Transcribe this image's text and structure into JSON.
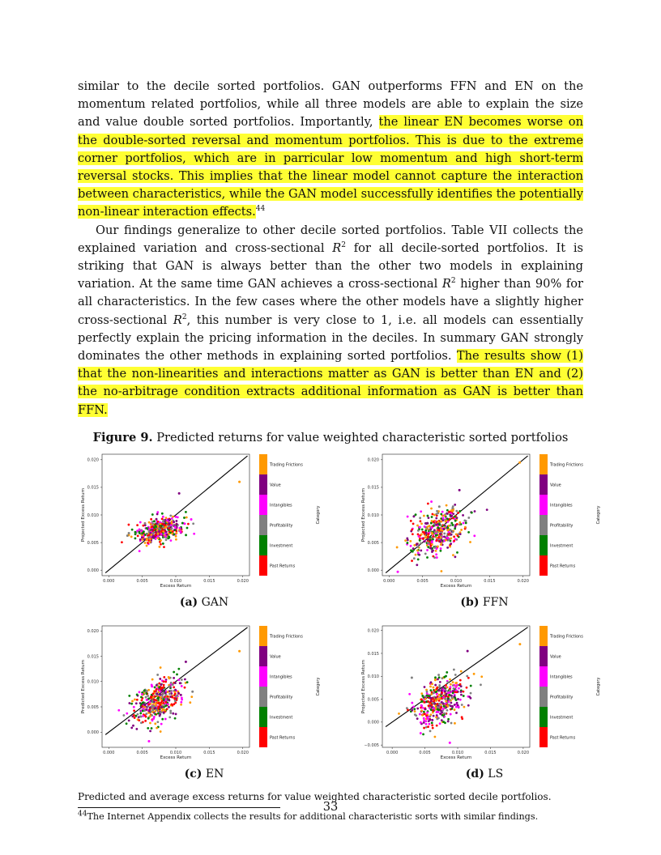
{
  "body": {
    "p1_a": "similar to the decile sorted portfolios. GAN outperforms FFN and EN on the momentum related portfolios, while all three models are able to explain the size and value double sorted portfolios. Importantly, ",
    "p1_hl": "the linear EN becomes worse on the double-sorted reversal and momentum portfolios. This is due to the extreme corner portfolios, which are in parricular low momentum and high short-term reversal stocks. This implies that the linear model cannot capture the interaction between characteristics, while the GAN model successfully identifies the potentially non-linear interaction effects.",
    "p1_fn": "44",
    "p2_a": "Our findings generalize to other decile sorted portfolios. Table VII collects the explained variation and cross-sectional ",
    "p2_b": " for all decile-sorted portfolios. It is striking that GAN is always better than the other two models in explaining variation. At the same time GAN achieves a cross-sectional ",
    "p2_c": " higher than 90% for all characteristics. In the few cases where the other models have a slightly higher cross-sectional ",
    "p2_d": ", this number is very close to 1, i.e. all models can essentially perfectly explain the pricing information in the deciles. In summary GAN strongly dominates the other methods in explaining sorted portfolios. ",
    "p2_hl": "The results show (1) that the non-linearities and interactions matter as GAN is better than EN and (2) the no-arbitrage condition extracts additional information as GAN is better than FFN.",
    "r2_base": "R",
    "r2_sup": "2"
  },
  "figure": {
    "label": "Figure 9.",
    "title": "Predicted returns for value weighted characteristic sorted portfolios",
    "note": "Predicted and average excess returns for value weighted characteristic sorted decile portfolios."
  },
  "footnote": {
    "num": "44",
    "text": "The Internet Appendix collects the results for additional characteristic sorts with similar findings."
  },
  "page_number": "33",
  "legend": {
    "title": "Category",
    "items": [
      {
        "label": "Trading Frictions",
        "color": "#ff9900"
      },
      {
        "label": "Value",
        "color": "#800080"
      },
      {
        "label": "Intangibles",
        "color": "#ff00ff"
      },
      {
        "label": "Profitability",
        "color": "#808080"
      },
      {
        "label": "Investment",
        "color": "#008000"
      },
      {
        "label": "Past Returns",
        "color": "#ff0000"
      }
    ]
  },
  "chart_data": [
    {
      "type": "scatter",
      "panel": "(a)",
      "caption_label": "(a)",
      "caption_name": "GAN",
      "xlabel": "Excess Return",
      "ylabel": "Projected Excess Return",
      "xlim": [
        -0.001,
        0.021
      ],
      "ylim": [
        -0.001,
        0.021
      ],
      "xticks": [
        "0.000",
        "0.005",
        "0.010",
        "0.015",
        "0.020"
      ],
      "yticks": [
        "0.000",
        "0.005",
        "0.010",
        "0.015",
        "0.020"
      ],
      "reference_line": "y = x",
      "cluster_center": [
        0.0075,
        0.0073
      ],
      "cluster_spread": [
        0.0022,
        0.0012
      ],
      "outliers": [
        [
          0.0195,
          0.016
        ],
        [
          0.0105,
          0.0139
        ],
        [
          0.0123,
          0.0092
        ],
        [
          0.003,
          0.0067
        ]
      ]
    },
    {
      "type": "scatter",
      "panel": "(b)",
      "caption_label": "(b)",
      "caption_name": "FFN",
      "xlabel": "Excess Return",
      "ylabel": "Projected Excess Return",
      "xlim": [
        -0.001,
        0.021
      ],
      "ylim": [
        -0.001,
        0.021
      ],
      "xticks": [
        "0.000",
        "0.005",
        "0.010",
        "0.015",
        "0.020"
      ],
      "yticks": [
        "0.000",
        "0.005",
        "0.010",
        "0.015",
        "0.020"
      ],
      "reference_line": "y = x",
      "cluster_center": [
        0.0073,
        0.0068
      ],
      "cluster_spread": [
        0.0024,
        0.0022
      ],
      "outliers": [
        [
          0.0195,
          0.0195
        ],
        [
          0.0105,
          0.0145
        ],
        [
          0.0013,
          -0.0003
        ],
        [
          0.0075,
          0.0115
        ]
      ]
    },
    {
      "type": "scatter",
      "panel": "(c)",
      "caption_label": "(c)",
      "caption_name": "EN",
      "xlabel": "Excess Return",
      "ylabel": "Predicted Excess Return",
      "xlim": [
        -0.001,
        0.021
      ],
      "ylim": [
        -0.003,
        0.021
      ],
      "xticks": [
        "0.000",
        "0.005",
        "0.010",
        "0.015",
        "0.020"
      ],
      "yticks": [
        "0.000",
        "0.005",
        "0.010",
        "0.015",
        "0.020"
      ],
      "reference_line": "y = x",
      "cluster_center": [
        0.0073,
        0.0063
      ],
      "cluster_spread": [
        0.0023,
        0.0022
      ],
      "outliers": [
        [
          0.0195,
          0.016
        ],
        [
          0.0115,
          0.0139
        ],
        [
          0.006,
          -0.0018
        ],
        [
          0.0125,
          0.008
        ]
      ]
    },
    {
      "type": "scatter",
      "panel": "(d)",
      "caption_label": "(d)",
      "caption_name": "LS",
      "xlabel": "Excess Return",
      "ylabel": "Projected Excess Return",
      "xlim": [
        -0.0015,
        0.021
      ],
      "ylim": [
        -0.0055,
        0.021
      ],
      "xticks": [
        "0.000",
        "0.005",
        "0.010",
        "0.015",
        "0.020"
      ],
      "yticks": [
        "−0.005",
        "0.000",
        "0.005",
        "0.010",
        "0.015",
        "0.020"
      ],
      "reference_line": "y = x",
      "cluster_center": [
        0.0073,
        0.0045
      ],
      "cluster_spread": [
        0.0024,
        0.0028
      ],
      "outliers": [
        [
          0.0195,
          0.017
        ],
        [
          0.0115,
          0.0155
        ],
        [
          0.0088,
          -0.0045
        ],
        [
          0.003,
          0.0097
        ]
      ]
    }
  ]
}
